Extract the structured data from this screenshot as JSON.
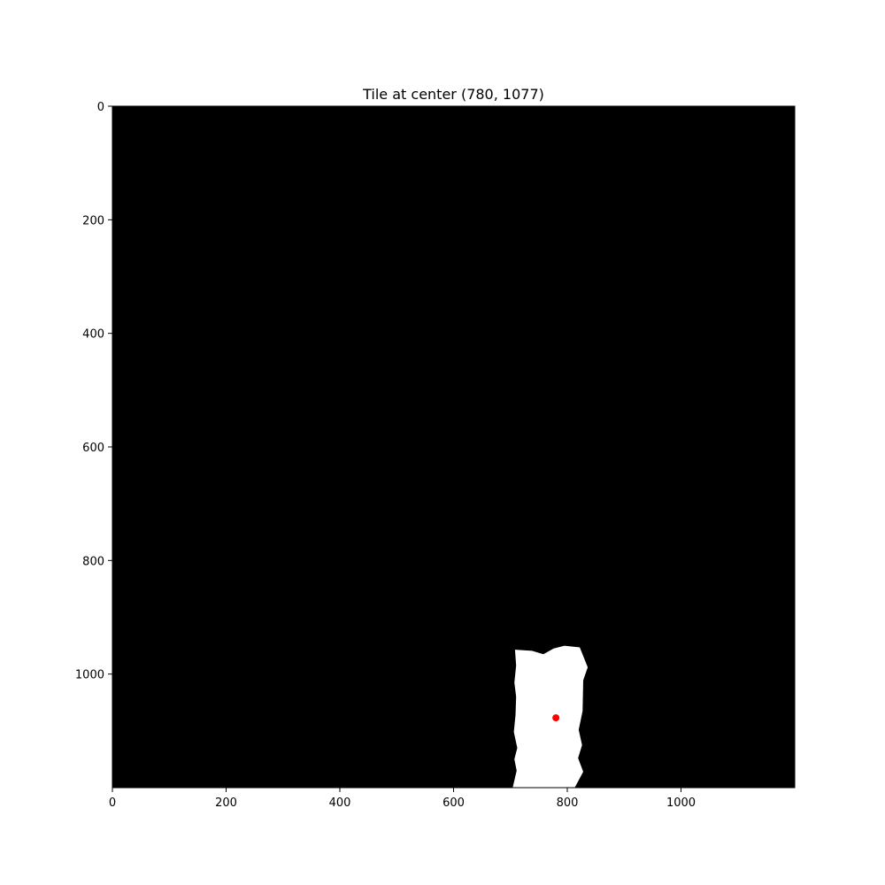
{
  "chart_data": {
    "type": "heatmap",
    "title": "Tile at center (780, 1077)",
    "xlabel": "",
    "ylabel": "",
    "xlim": [
      0,
      1200
    ],
    "ylim": [
      1200,
      0
    ],
    "y_axis_inverted": true,
    "x_ticks": [
      0,
      200,
      400,
      600,
      800,
      1000
    ],
    "y_ticks": [
      0,
      200,
      400,
      600,
      800,
      1000
    ],
    "grid": false,
    "legend": "none",
    "colors": {
      "background": "#000000",
      "mask": "#ffffff",
      "marker": "#ff0000"
    },
    "mask_region": [
      [
        708,
        957
      ],
      [
        738,
        959
      ],
      [
        758,
        965
      ],
      [
        776,
        955
      ],
      [
        795,
        950
      ],
      [
        822,
        953
      ],
      [
        836,
        988
      ],
      [
        828,
        1011
      ],
      [
        827,
        1065
      ],
      [
        820,
        1098
      ],
      [
        826,
        1125
      ],
      [
        819,
        1148
      ],
      [
        828,
        1172
      ],
      [
        813,
        1200
      ],
      [
        704,
        1200
      ],
      [
        711,
        1170
      ],
      [
        707,
        1150
      ],
      [
        712,
        1130
      ],
      [
        706,
        1102
      ],
      [
        709,
        1072
      ],
      [
        710,
        1040
      ],
      [
        707,
        1015
      ],
      [
        710,
        985
      ]
    ],
    "center_point": {
      "x": 780,
      "y": 1077
    }
  }
}
